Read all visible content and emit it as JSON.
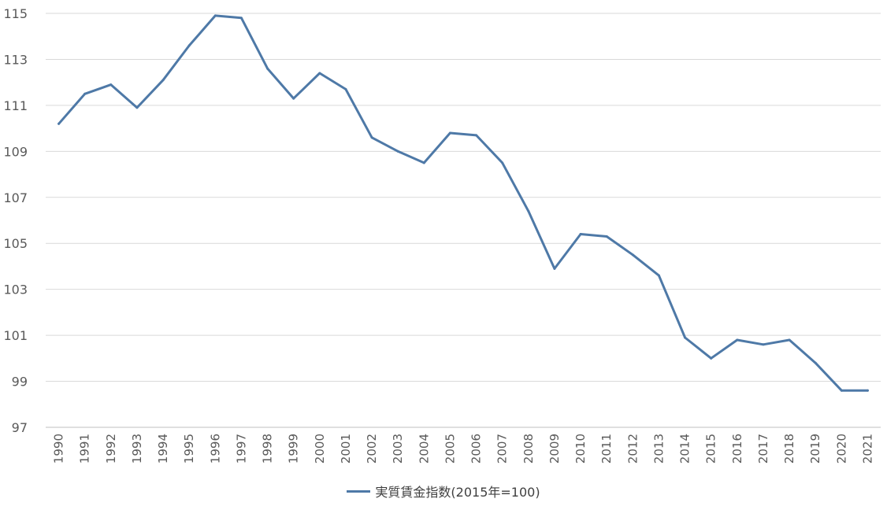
{
  "chart_data": {
    "type": "line",
    "title": "",
    "xlabel": "",
    "ylabel": "",
    "categories": [
      "1990",
      "1991",
      "1992",
      "1993",
      "1994",
      "1995",
      "1996",
      "1997",
      "1998",
      "1999",
      "2000",
      "2001",
      "2002",
      "2003",
      "2004",
      "2005",
      "2006",
      "2007",
      "2008",
      "2009",
      "2010",
      "2011",
      "2012",
      "2013",
      "2014",
      "2015",
      "2016",
      "2017",
      "2018",
      "2019",
      "2020",
      "2021"
    ],
    "series": [
      {
        "name": "実質賃金指数(2015年=100)",
        "color": "#4e79a7",
        "values": [
          110.2,
          111.5,
          111.9,
          110.9,
          112.1,
          113.6,
          114.9,
          114.8,
          112.6,
          111.3,
          112.4,
          111.7,
          109.6,
          109.0,
          108.5,
          109.8,
          109.7,
          108.5,
          106.4,
          103.9,
          105.4,
          105.3,
          104.5,
          103.6,
          100.9,
          100.0,
          100.8,
          100.6,
          100.8,
          99.8,
          98.6,
          98.6
        ]
      }
    ],
    "ylim": [
      97,
      115
    ],
    "yticks": [
      "97",
      "99",
      "101",
      "103",
      "105",
      "107",
      "109",
      "111",
      "113",
      "115"
    ],
    "grid": true,
    "legend_position": "bottom"
  }
}
